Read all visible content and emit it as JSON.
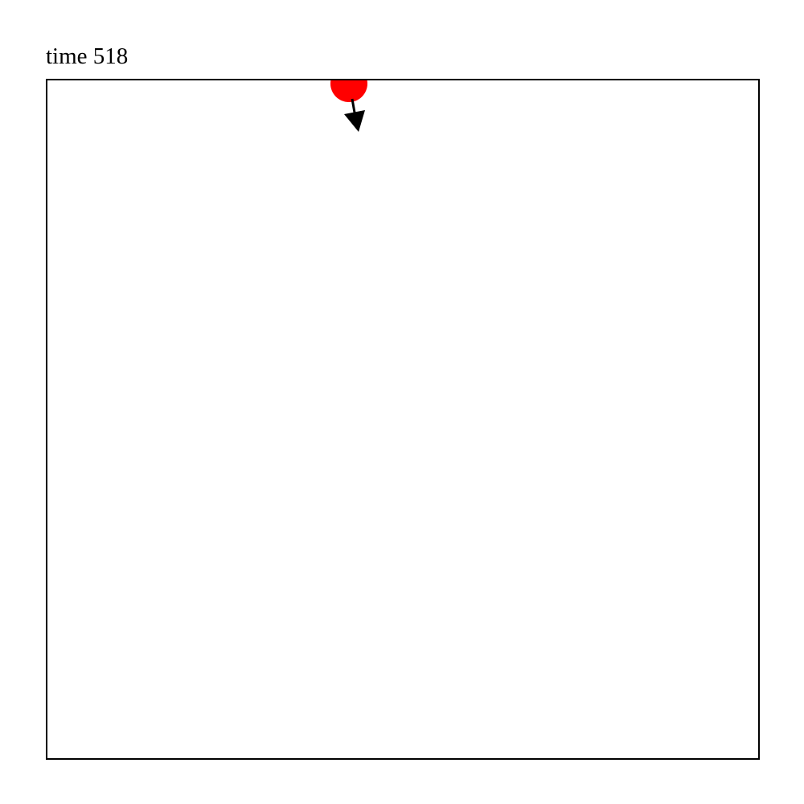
{
  "title": {
    "prefix": "time",
    "value": "518"
  },
  "colors": {
    "ball": "#ff0000",
    "arrow": "#000000",
    "frame": "#000000",
    "background": "#ffffff"
  },
  "ball": {
    "icon": "red-ball-icon",
    "velocity_direction": "down-slightly-right"
  },
  "arrow": {
    "icon": "velocity-arrow-icon"
  }
}
